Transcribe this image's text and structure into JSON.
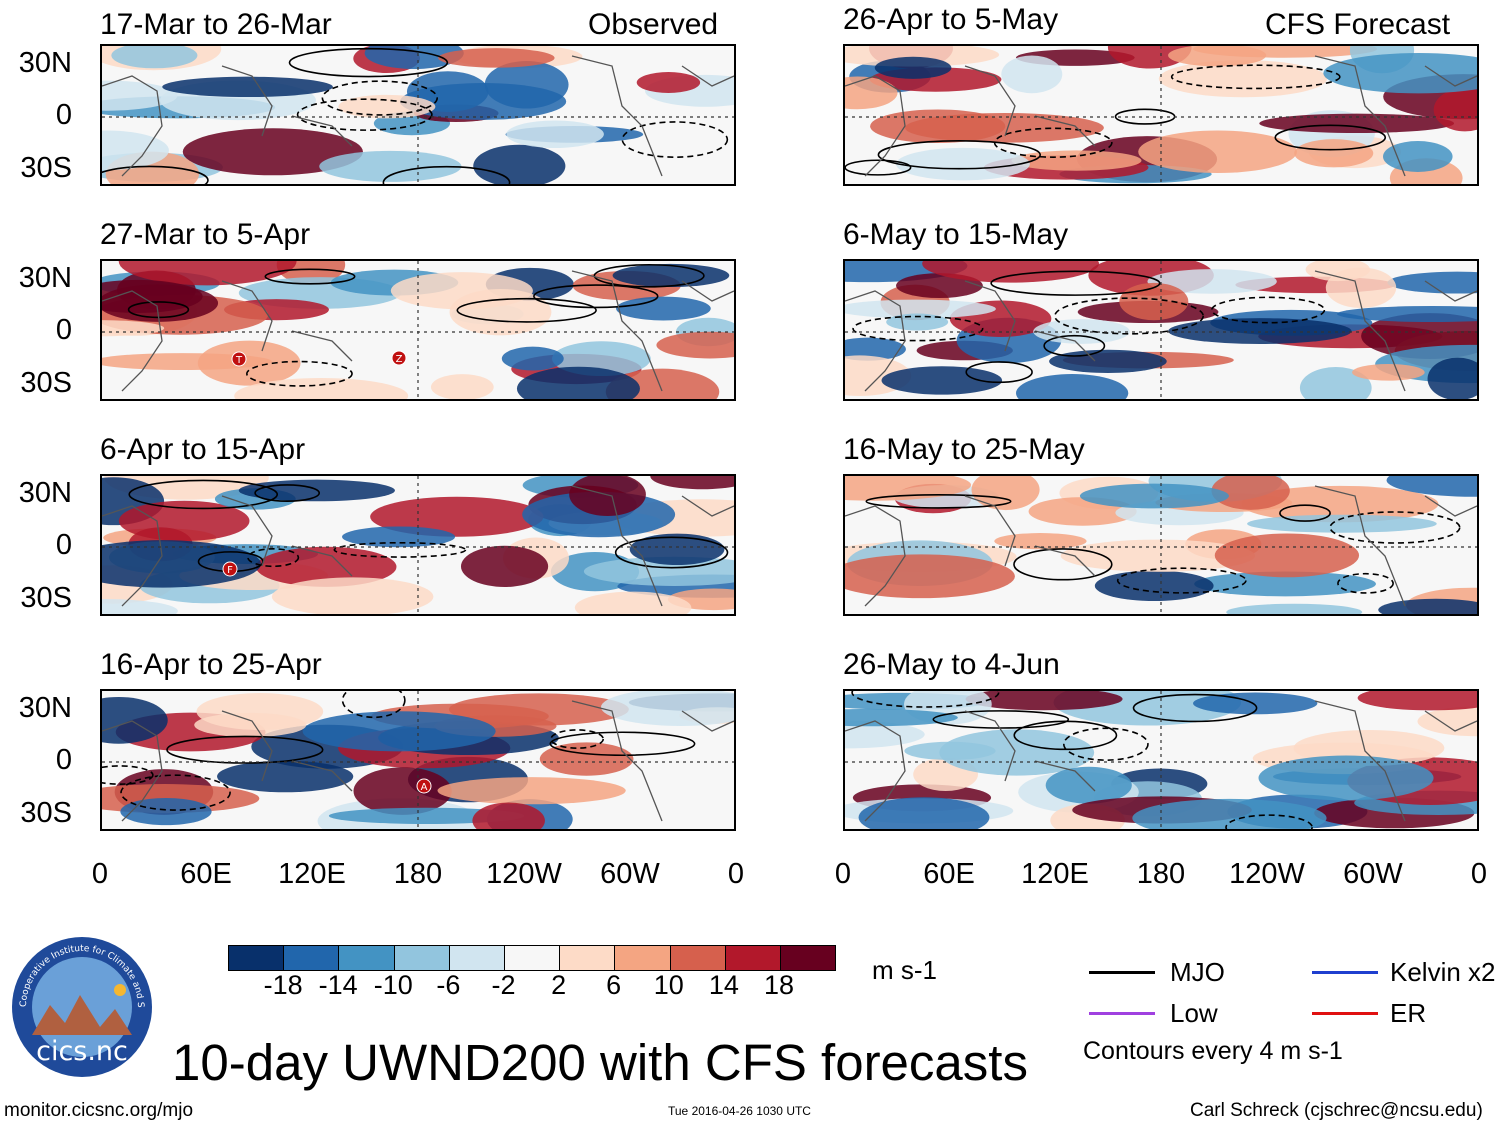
{
  "header": {
    "left_label": "Observed",
    "right_label": "CFS Forecast"
  },
  "panels": {
    "left": [
      "17-Mar to 26-Mar",
      "27-Mar to 5-Apr",
      "6-Apr to 15-Apr",
      "16-Apr to 25-Apr"
    ],
    "right": [
      "26-Apr to 5-May",
      "6-May to 15-May",
      "16-May to 25-May",
      "26-May to 4-Jun"
    ]
  },
  "lat_labels": [
    "30N",
    "0",
    "30S"
  ],
  "lon_labels": [
    "0",
    "60E",
    "120E",
    "180",
    "120W",
    "60W",
    "0"
  ],
  "colorbar": {
    "colors": [
      "#08306b",
      "#2166ac",
      "#4393c3",
      "#92c5de",
      "#d1e5f0",
      "#f7f7f7",
      "#fddbc7",
      "#f4a582",
      "#d6604d",
      "#b2182b",
      "#67001f"
    ],
    "ticks": [
      "-18",
      "-14",
      "-10",
      "-6",
      "-2",
      "2",
      "6",
      "10",
      "14",
      "18"
    ],
    "units": "m s-1"
  },
  "legend": {
    "items": [
      {
        "label": "MJO",
        "color": "#000000"
      },
      {
        "label": "Kelvin x2",
        "color": "#1f3fcf"
      },
      {
        "label": "Low",
        "color": "#a040e0"
      },
      {
        "label": "ER",
        "color": "#e01010"
      }
    ],
    "note": "Contours every 4 m s-1"
  },
  "footer": {
    "title": "10-day UWND200 with CFS forecasts",
    "url": "monitor.cicsnc.org/mjo",
    "timestamp": "Tue 2016-04-26 1030 UTC",
    "credit": "Carl Schreck (cjschrec@ncsu.edu)",
    "logo_text": "cics.nc",
    "logo_ring_text": "Cooperative Institute for Climate and Satellites"
  },
  "markers": [
    "T",
    "Z",
    "F",
    "A"
  ]
}
